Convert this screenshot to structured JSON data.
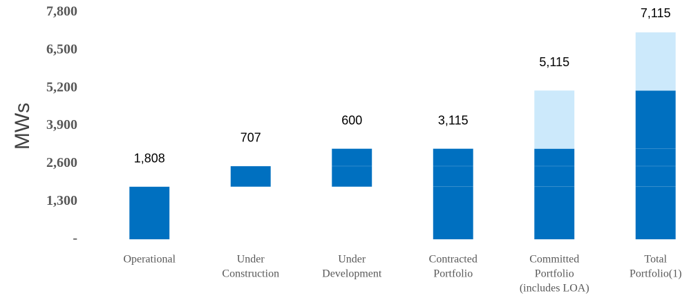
{
  "chart_data": {
    "type": "waterfall",
    "y_label": "MWs",
    "categories": [
      [
        "Operational"
      ],
      [
        "Under",
        "Construction"
      ],
      [
        "Under",
        "Development"
      ],
      [
        "Contracted",
        "Portfolio"
      ],
      [
        "Committed",
        "Portfolio",
        "(includes LOA)"
      ],
      [
        "Total",
        "Portfolio(1)"
      ]
    ],
    "series": [
      {
        "color": "none",
        "values": [
          null,
          1808,
          1808,
          null,
          null,
          null
        ]
      },
      {
        "color": "#0070c0",
        "values": [
          1808,
          null,
          null,
          1808,
          1808,
          1808
        ]
      },
      {
        "color": "#0070c0",
        "values": [
          null,
          707,
          707,
          707,
          707,
          707
        ]
      },
      {
        "color": "#0070c0",
        "values": [
          null,
          null,
          600,
          600,
          600,
          600
        ]
      },
      {
        "color": "#0070c0",
        "values": [
          null,
          null,
          null,
          null,
          null,
          2000
        ]
      },
      {
        "color": "#cce9fb",
        "values": [
          null,
          null,
          null,
          null,
          2000,
          2000
        ]
      }
    ],
    "totals": [
      1808,
      707,
      600,
      3115,
      5115,
      7115
    ],
    "value_labels": [
      "1,808",
      "707",
      "600",
      "3,115",
      "5,115",
      "7,115"
    ],
    "ylim": [
      0,
      7800
    ],
    "yticks": [
      {
        "value": 0,
        "label": "-"
      },
      {
        "value": 1300,
        "label": "1,300"
      },
      {
        "value": 2600,
        "label": "2,600"
      },
      {
        "value": 3900,
        "label": "3,900"
      },
      {
        "value": 5200,
        "label": "5,200"
      },
      {
        "value": 6500,
        "label": "6,500"
      },
      {
        "value": 7800,
        "label": "7,800"
      }
    ],
    "grid": false
  }
}
